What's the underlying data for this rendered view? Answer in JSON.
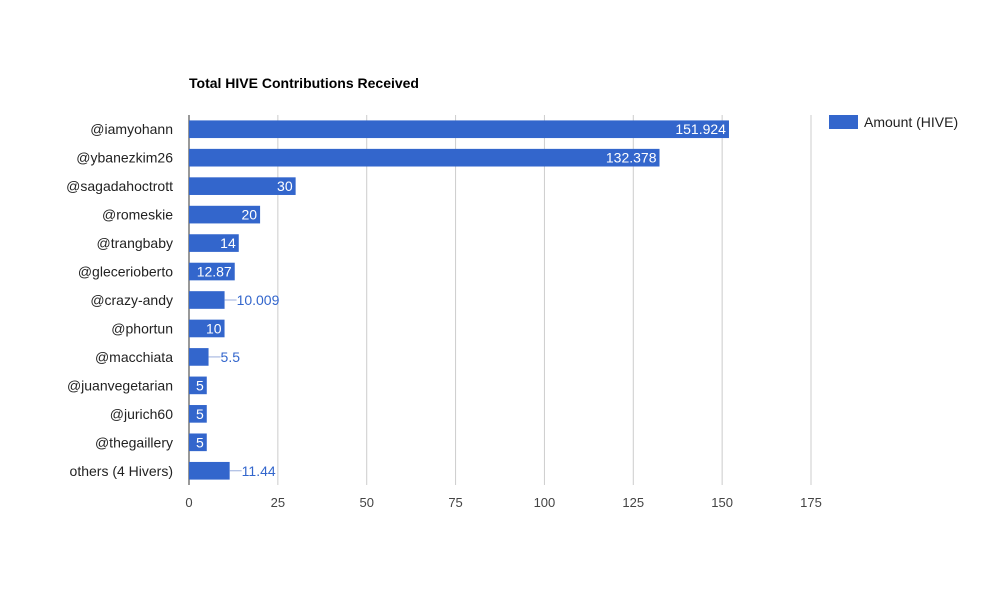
{
  "chart_data": {
    "type": "bar",
    "orientation": "horizontal",
    "title": "Total HIVE Contributions Received",
    "xlabel": "",
    "ylabel": "",
    "xlim": [
      0,
      175
    ],
    "ticks": [
      0,
      25,
      50,
      75,
      100,
      125,
      150,
      175
    ],
    "grid": true,
    "legend_position": "right",
    "categories": [
      "@iamyohann",
      "@ybanezkim26",
      "@sagadahoctrott",
      "@romeskie",
      "@trangbaby",
      "@glecerioberto",
      "@crazy-andy",
      "@phortun",
      "@macchiata",
      "@juanvegetarian",
      "@jurich60",
      "@thegaillery",
      "others (4 Hivers)"
    ],
    "series": [
      {
        "name": "Amount (HIVE)",
        "color": "#3366cc",
        "values": [
          151.924,
          132.378,
          30,
          20,
          14,
          12.87,
          10.009,
          10,
          5.5,
          5,
          5,
          5,
          11.44
        ],
        "labels": [
          "151.924",
          "132.378",
          "30",
          "20",
          "14",
          "12.87",
          "10.009",
          "10",
          "5.5",
          "5",
          "5",
          "5",
          "11.44"
        ]
      }
    ]
  }
}
